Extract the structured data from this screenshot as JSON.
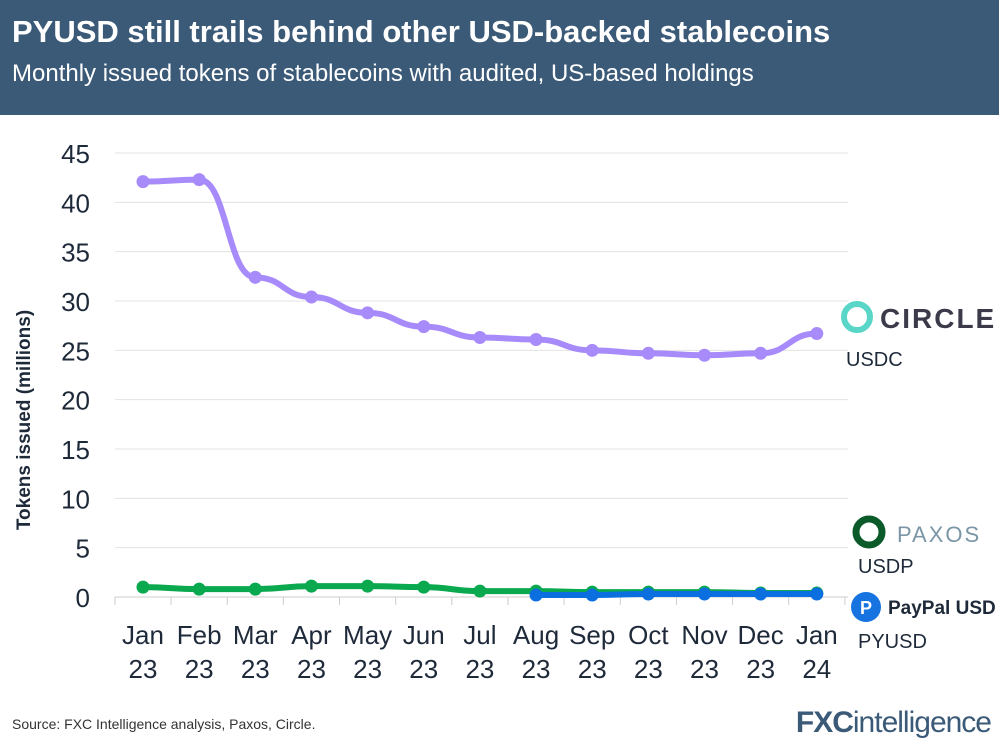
{
  "header": {
    "title": "PYUSD still trails behind other USD-backed stablecoins",
    "subtitle": "Monthly issued tokens of stablecoins with audited, US-based holdings"
  },
  "footer": {
    "source": "Source: FXC Intelligence analysis, Paxos, Circle.",
    "logo": "FXCintelligence"
  },
  "chart_data": {
    "type": "line",
    "ylabel": "Tokens issued (millions)",
    "ylim": [
      0,
      45
    ],
    "yticks": [
      0,
      5,
      10,
      15,
      20,
      25,
      30,
      35,
      40,
      45
    ],
    "grid": true,
    "categories": [
      [
        "Jan",
        "23"
      ],
      [
        "Feb",
        "23"
      ],
      [
        "Mar",
        "23"
      ],
      [
        "Apr",
        "23"
      ],
      [
        "May",
        "23"
      ],
      [
        "Jun",
        "23"
      ],
      [
        "Jul",
        "23"
      ],
      [
        "Aug",
        "23"
      ],
      [
        "Sep",
        "23"
      ],
      [
        "Oct",
        "23"
      ],
      [
        "Nov",
        "23"
      ],
      [
        "Dec",
        "23"
      ],
      [
        "Jan",
        "24"
      ]
    ],
    "series": [
      {
        "name": "USDC",
        "brand": "CIRCLE",
        "color": "#a78bfa",
        "values": [
          42.1,
          42.3,
          32.4,
          30.4,
          28.8,
          27.4,
          26.3,
          26.1,
          25.0,
          24.7,
          24.5,
          24.7,
          26.7
        ]
      },
      {
        "name": "USDP",
        "brand": "PAXOS",
        "color": "#0aa84f",
        "values": [
          1.0,
          0.8,
          0.8,
          1.1,
          1.1,
          1.0,
          0.6,
          0.6,
          0.5,
          0.5,
          0.5,
          0.4,
          0.4
        ]
      },
      {
        "name": "PYUSD",
        "brand": "PayPal USD",
        "color": "#0b6fe0",
        "values": [
          null,
          null,
          null,
          null,
          null,
          null,
          null,
          0.2,
          0.2,
          0.3,
          0.3,
          0.3,
          0.3
        ]
      }
    ]
  }
}
